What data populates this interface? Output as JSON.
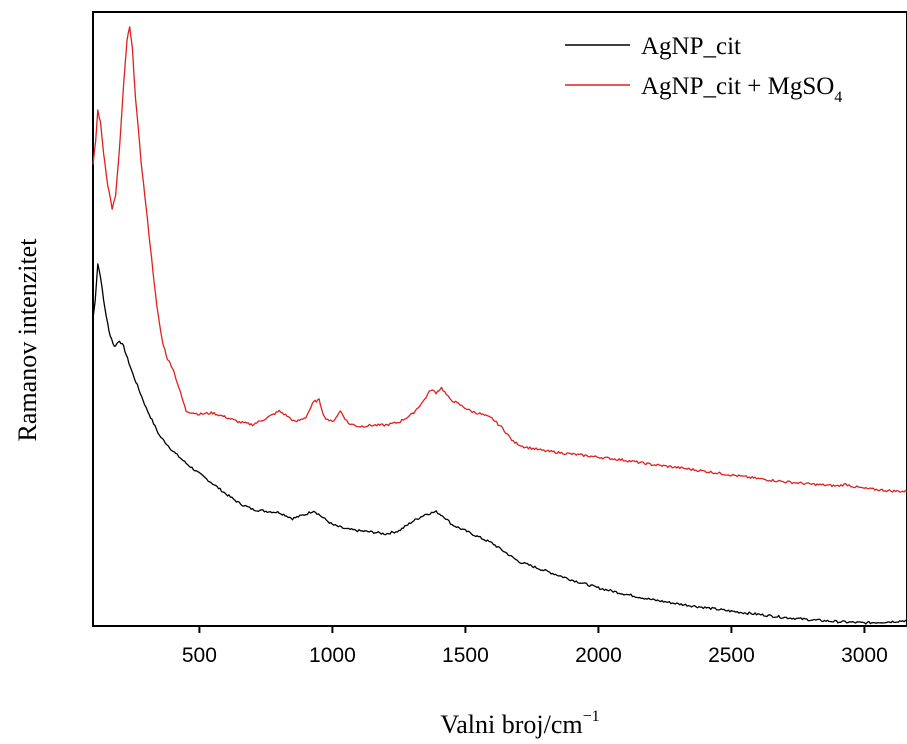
{
  "chart_data": {
    "type": "line",
    "xlabel": "Valni broj/cm",
    "xlabel_superscript": "−1",
    "ylabel": "Ramanov intenzitet",
    "xlim": [
      100,
      3160
    ],
    "ylim": [
      0,
      1
    ],
    "x_ticks": [
      "500",
      "1000",
      "1500",
      "2000",
      "2500",
      "3000"
    ],
    "x_tick_values": [
      500,
      1000,
      1500,
      2000,
      2500,
      3000
    ],
    "y_ticks_labeled": false,
    "grid": false,
    "legend": {
      "position": "top-right"
    },
    "series": [
      {
        "name": "AgNP_cit",
        "color": "#000000",
        "points": [
          [
            100,
            0.5
          ],
          [
            108,
            0.53
          ],
          [
            118,
            0.59
          ],
          [
            128,
            0.57
          ],
          [
            140,
            0.53
          ],
          [
            160,
            0.48
          ],
          [
            180,
            0.455
          ],
          [
            200,
            0.465
          ],
          [
            215,
            0.455
          ],
          [
            230,
            0.435
          ],
          [
            250,
            0.41
          ],
          [
            300,
            0.355
          ],
          [
            350,
            0.31
          ],
          [
            400,
            0.285
          ],
          [
            450,
            0.265
          ],
          [
            500,
            0.248
          ],
          [
            550,
            0.232
          ],
          [
            600,
            0.215
          ],
          [
            650,
            0.2
          ],
          [
            700,
            0.19
          ],
          [
            750,
            0.187
          ],
          [
            800,
            0.185
          ],
          [
            850,
            0.175
          ],
          [
            900,
            0.182
          ],
          [
            930,
            0.188
          ],
          [
            960,
            0.178
          ],
          [
            1000,
            0.165
          ],
          [
            1050,
            0.158
          ],
          [
            1100,
            0.155
          ],
          [
            1150,
            0.153
          ],
          [
            1200,
            0.15
          ],
          [
            1250,
            0.155
          ],
          [
            1300,
            0.17
          ],
          [
            1350,
            0.182
          ],
          [
            1390,
            0.186
          ],
          [
            1420,
            0.178
          ],
          [
            1450,
            0.165
          ],
          [
            1500,
            0.155
          ],
          [
            1550,
            0.145
          ],
          [
            1600,
            0.135
          ],
          [
            1650,
            0.12
          ],
          [
            1700,
            0.105
          ],
          [
            1800,
            0.09
          ],
          [
            1900,
            0.075
          ],
          [
            2000,
            0.062
          ],
          [
            2100,
            0.052
          ],
          [
            2200,
            0.043
          ],
          [
            2300,
            0.036
          ],
          [
            2400,
            0.03
          ],
          [
            2500,
            0.024
          ],
          [
            2600,
            0.019
          ],
          [
            2700,
            0.014
          ],
          [
            2800,
            0.01
          ],
          [
            2900,
            0.007
          ],
          [
            3000,
            0.005
          ],
          [
            3100,
            0.007
          ],
          [
            3160,
            0.009
          ]
        ]
      },
      {
        "name": "AgNP_cit + MgSO",
        "name_subscript": "4",
        "color": "#e02020",
        "points": [
          [
            100,
            0.75
          ],
          [
            110,
            0.79
          ],
          [
            118,
            0.84
          ],
          [
            128,
            0.82
          ],
          [
            140,
            0.77
          ],
          [
            155,
            0.72
          ],
          [
            172,
            0.68
          ],
          [
            185,
            0.7
          ],
          [
            200,
            0.78
          ],
          [
            215,
            0.88
          ],
          [
            228,
            0.955
          ],
          [
            238,
            0.975
          ],
          [
            248,
            0.94
          ],
          [
            260,
            0.86
          ],
          [
            280,
            0.76
          ],
          [
            300,
            0.68
          ],
          [
            320,
            0.6
          ],
          [
            340,
            0.52
          ],
          [
            360,
            0.465
          ],
          [
            380,
            0.435
          ],
          [
            400,
            0.42
          ],
          [
            450,
            0.35
          ],
          [
            500,
            0.345
          ],
          [
            550,
            0.347
          ],
          [
            600,
            0.34
          ],
          [
            650,
            0.332
          ],
          [
            700,
            0.328
          ],
          [
            750,
            0.338
          ],
          [
            800,
            0.35
          ],
          [
            830,
            0.342
          ],
          [
            860,
            0.332
          ],
          [
            900,
            0.34
          ],
          [
            930,
            0.365
          ],
          [
            950,
            0.368
          ],
          [
            970,
            0.34
          ],
          [
            1000,
            0.332
          ],
          [
            1030,
            0.35
          ],
          [
            1060,
            0.33
          ],
          [
            1100,
            0.325
          ],
          [
            1150,
            0.327
          ],
          [
            1200,
            0.327
          ],
          [
            1250,
            0.332
          ],
          [
            1300,
            0.345
          ],
          [
            1340,
            0.365
          ],
          [
            1370,
            0.385
          ],
          [
            1390,
            0.38
          ],
          [
            1410,
            0.388
          ],
          [
            1440,
            0.37
          ],
          [
            1480,
            0.36
          ],
          [
            1520,
            0.35
          ],
          [
            1560,
            0.345
          ],
          [
            1600,
            0.338
          ],
          [
            1640,
            0.322
          ],
          [
            1680,
            0.3
          ],
          [
            1720,
            0.292
          ],
          [
            1800,
            0.285
          ],
          [
            1900,
            0.28
          ],
          [
            2000,
            0.275
          ],
          [
            2100,
            0.27
          ],
          [
            2200,
            0.263
          ],
          [
            2300,
            0.258
          ],
          [
            2400,
            0.252
          ],
          [
            2500,
            0.246
          ],
          [
            2600,
            0.24
          ],
          [
            2700,
            0.235
          ],
          [
            2800,
            0.231
          ],
          [
            2900,
            0.228
          ],
          [
            2930,
            0.231
          ],
          [
            2960,
            0.227
          ],
          [
            3000,
            0.224
          ],
          [
            3100,
            0.22
          ],
          [
            3160,
            0.219
          ]
        ]
      }
    ]
  }
}
